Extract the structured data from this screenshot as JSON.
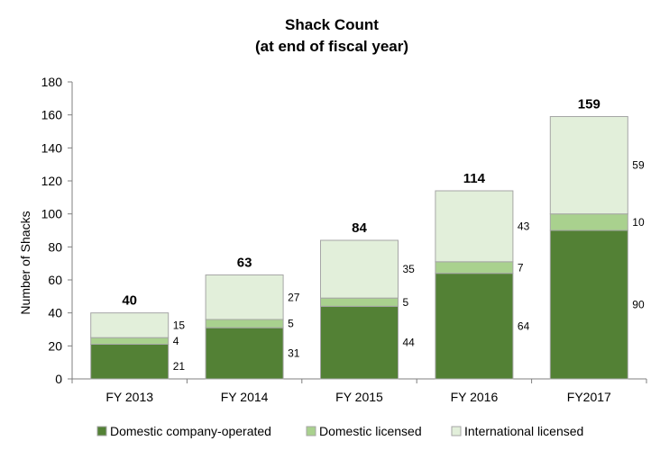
{
  "chart_data": {
    "type": "bar",
    "stacked": true,
    "title": "Shack Count",
    "subtitle": "(at end of fiscal year)",
    "xlabel": "",
    "ylabel": "Number of Shacks",
    "ylim": [
      0,
      180
    ],
    "yticks": [
      0,
      20,
      40,
      60,
      80,
      100,
      120,
      140,
      160,
      180
    ],
    "grid": false,
    "legend_position": "bottom",
    "categories": [
      "FY 2013",
      "FY 2014",
      "FY 2015",
      "FY 2016",
      "FY2017"
    ],
    "series": [
      {
        "name": "Domestic company-operated",
        "color": "#538135",
        "values": [
          21,
          31,
          44,
          64,
          90
        ]
      },
      {
        "name": "Domestic licensed",
        "color": "#a9d18e",
        "values": [
          4,
          5,
          5,
          7,
          10
        ]
      },
      {
        "name": "International licensed",
        "color": "#e2efda",
        "values": [
          15,
          27,
          35,
          43,
          59
        ]
      }
    ],
    "totals": [
      40,
      63,
      84,
      114,
      159
    ]
  }
}
